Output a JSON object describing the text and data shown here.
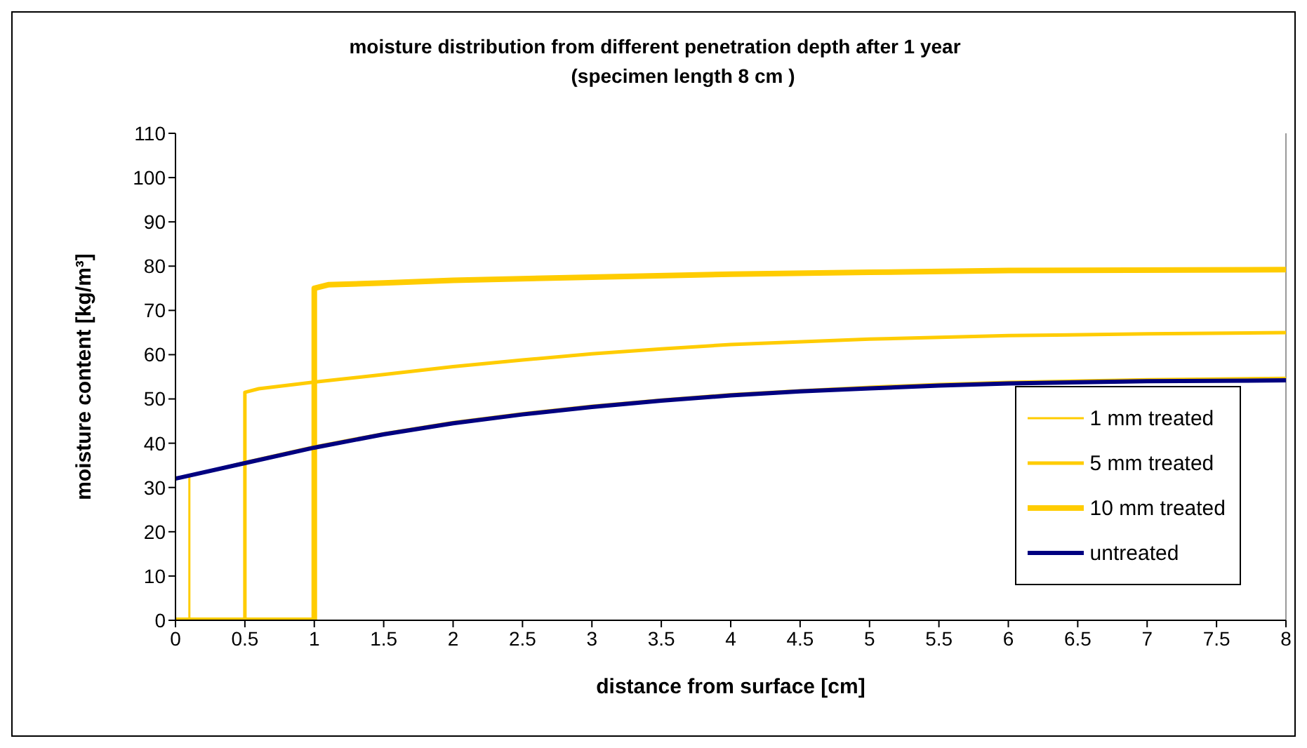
{
  "chart_data": {
    "type": "line",
    "title": "moisture distribution from different penetration depth after 1 year",
    "subtitle": "(specimen length 8 cm )",
    "xlabel": "distance from surface [cm]",
    "ylabel": "moisture content [kg/m³]",
    "xlim": [
      0,
      8
    ],
    "xticks": [
      0,
      0.5,
      1,
      1.5,
      2,
      2.5,
      3,
      3.5,
      4,
      4.5,
      5,
      5.5,
      6,
      6.5,
      7,
      7.5,
      8
    ],
    "ylim": [
      0,
      110
    ],
    "yticks": [
      0,
      10,
      20,
      30,
      40,
      50,
      60,
      70,
      80,
      90,
      100,
      110
    ],
    "grid": false,
    "legend": "bottom right",
    "marker": "none",
    "line_style": "solid",
    "series": [
      {
        "name": "1 mm treated",
        "color": "#ffcc00",
        "x": [
          0,
          0.1,
          0.1,
          0.5,
          1,
          1.5,
          2,
          2.5,
          3,
          3.5,
          4,
          4.5,
          5,
          5.5,
          6,
          7,
          8
        ],
        "values": [
          0,
          0,
          32.6,
          35.8,
          39.3,
          42.3,
          44.8,
          46.8,
          48.5,
          49.9,
          51.1,
          52,
          52.8,
          53.4,
          53.9,
          54.5,
          54.8
        ]
      },
      {
        "name": "5 mm treated",
        "color": "#ffcc00",
        "x": [
          0,
          0.5,
          0.5,
          0.6,
          1,
          1.5,
          2,
          2.5,
          3,
          3.5,
          4,
          5,
          6,
          7,
          8
        ],
        "values": [
          0,
          0,
          51.5,
          52.3,
          53.8,
          55.5,
          57.3,
          58.8,
          60.2,
          61.3,
          62.3,
          63.5,
          64.3,
          64.7,
          65
        ]
      },
      {
        "name": "10 mm treated",
        "color": "#ffcc00",
        "x": [
          0,
          1,
          1,
          1.1,
          1.5,
          2,
          3,
          4,
          5,
          6,
          8
        ],
        "values": [
          0,
          0,
          75,
          75.8,
          76.2,
          76.8,
          77.5,
          78.2,
          78.6,
          79,
          79.2
        ]
      },
      {
        "name": "untreated",
        "color": "#000080",
        "x": [
          0,
          0.5,
          1,
          1.5,
          2,
          2.5,
          3,
          3.5,
          4,
          4.5,
          5,
          5.5,
          6,
          7,
          8
        ],
        "values": [
          32,
          35.5,
          39,
          42,
          44.5,
          46.5,
          48.2,
          49.6,
          50.8,
          51.7,
          52.4,
          53,
          53.5,
          54,
          54.2
        ]
      }
    ]
  }
}
